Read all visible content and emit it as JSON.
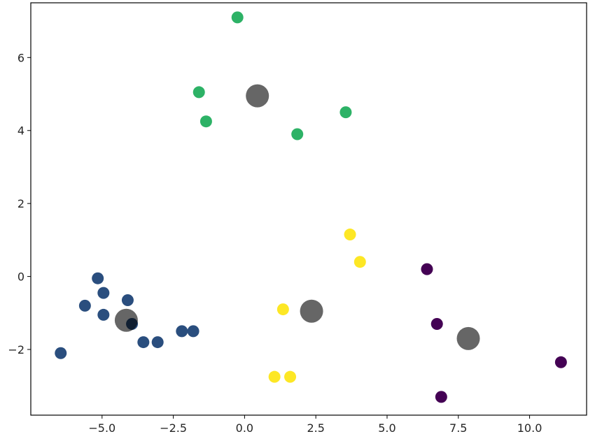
{
  "chart_data": {
    "type": "scatter",
    "title": "",
    "xlabel": "",
    "ylabel": "",
    "xlim": [
      -7.5,
      12.0
    ],
    "ylim": [
      -3.8,
      7.5
    ],
    "grid": false,
    "xticks": [
      -5.0,
      -2.5,
      0.0,
      2.5,
      5.0,
      7.5,
      10.0
    ],
    "xtick_labels": [
      "−5.0",
      "−2.5",
      "0.0",
      "2.5",
      "5.0",
      "7.5",
      "10.0"
    ],
    "yticks": [
      -2,
      0,
      2,
      4,
      6
    ],
    "ytick_labels": [
      "−2",
      "0",
      "2",
      "4",
      "6"
    ],
    "series": [
      {
        "color": "#440154",
        "points": [
          [
            6.4,
            0.2
          ],
          [
            6.75,
            -1.3
          ],
          [
            6.9,
            -3.3
          ],
          [
            11.1,
            -2.35
          ]
        ]
      },
      {
        "color": "#2a4e7e",
        "points": [
          [
            -6.45,
            -2.1
          ],
          [
            -5.6,
            -0.8
          ],
          [
            -5.15,
            -0.05
          ],
          [
            -4.95,
            -0.45
          ],
          [
            -4.95,
            -1.05
          ],
          [
            -4.1,
            -0.65
          ],
          [
            -3.95,
            -1.3
          ],
          [
            -3.55,
            -1.8
          ],
          [
            -3.05,
            -1.8
          ],
          [
            -2.2,
            -1.5
          ],
          [
            -1.8,
            -1.5
          ]
        ]
      },
      {
        "color": "#2db266",
        "points": [
          [
            -0.25,
            7.1
          ],
          [
            -1.6,
            5.05
          ],
          [
            -1.35,
            4.25
          ],
          [
            1.85,
            3.9
          ],
          [
            3.55,
            4.5
          ]
        ]
      },
      {
        "color": "#fde725",
        "points": [
          [
            3.7,
            1.15
          ],
          [
            4.05,
            0.4
          ],
          [
            1.35,
            -0.9
          ],
          [
            1.05,
            -2.75
          ],
          [
            1.6,
            -2.75
          ]
        ]
      }
    ],
    "centers": {
      "color": "#000000",
      "opacity": 0.6,
      "points": [
        [
          -4.15,
          -1.2
        ],
        [
          0.45,
          4.95
        ],
        [
          2.35,
          -0.95
        ],
        [
          7.85,
          -1.7
        ]
      ]
    }
  }
}
